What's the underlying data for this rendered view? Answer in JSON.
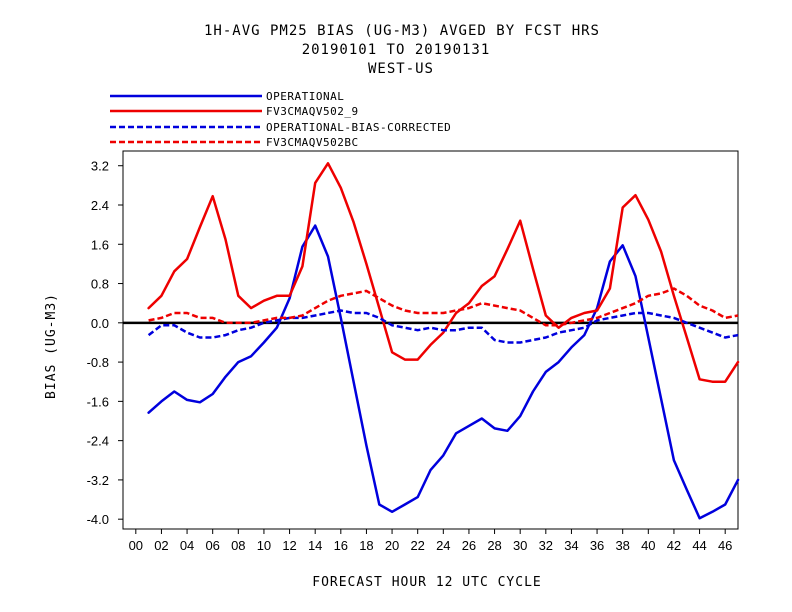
{
  "chart_data": {
    "type": "line",
    "title_lines": [
      "1H-AVG PM25 BIAS (UG-M3)  AVGED BY FCST HRS",
      "20190101 TO 20190131",
      "WEST-US"
    ],
    "xlabel": "FORECAST HOUR  12 UTC CYCLE",
    "ylabel": "BIAS (UG-M3)",
    "xlim": [
      -1,
      47
    ],
    "ylim": [
      -4.2,
      3.5
    ],
    "xticks": [
      0,
      2,
      4,
      6,
      8,
      10,
      12,
      14,
      16,
      18,
      20,
      22,
      24,
      26,
      28,
      30,
      32,
      34,
      36,
      38,
      40,
      42,
      44,
      46
    ],
    "xtick_labels": [
      "00",
      "02",
      "04",
      "06",
      "08",
      "10",
      "12",
      "14",
      "16",
      "18",
      "20",
      "22",
      "24",
      "26",
      "28",
      "30",
      "32",
      "34",
      "36",
      "38",
      "40",
      "42",
      "44",
      "46"
    ],
    "yticks": [
      3.2,
      2.4,
      1.6,
      0.8,
      0.0,
      -0.8,
      -1.6,
      -2.4,
      -3.2,
      -4.0
    ],
    "ytick_labels": [
      "3.2",
      "2.4",
      "1.6",
      "0.8",
      "0.0",
      "-0.8",
      "-1.6",
      "-2.4",
      "-3.2",
      "-4.0"
    ],
    "zero_line": true,
    "grid": false,
    "legend_position": "top-left, above plot",
    "x": [
      1,
      2,
      3,
      4,
      5,
      6,
      7,
      8,
      9,
      10,
      11,
      12,
      13,
      14,
      15,
      16,
      17,
      18,
      19,
      20,
      21,
      22,
      23,
      24,
      25,
      26,
      27,
      28,
      29,
      30,
      31,
      32,
      33,
      34,
      35,
      36,
      37,
      38,
      39,
      40,
      41,
      42,
      43,
      44,
      45,
      46,
      47
    ],
    "series": [
      {
        "name": "OPERATIONAL",
        "color": "#0000dd",
        "dash": "solid",
        "values": [
          -1.83,
          -1.6,
          -1.4,
          -1.57,
          -1.62,
          -1.45,
          -1.1,
          -0.8,
          -0.68,
          -0.4,
          -0.1,
          0.5,
          1.55,
          1.98,
          1.35,
          0.1,
          -1.2,
          -2.5,
          -3.7,
          -3.85,
          -3.7,
          -3.55,
          -3.0,
          -2.7,
          -2.25,
          -2.1,
          -1.95,
          -2.15,
          -2.2,
          -1.9,
          -1.4,
          -1.0,
          -0.8,
          -0.5,
          -0.25,
          0.3,
          1.25,
          1.58,
          0.95,
          -0.3,
          -1.55,
          -2.8,
          -3.4,
          -3.98,
          -3.85,
          -3.7,
          -3.2
        ]
      },
      {
        "name": "FV3CMAQV502_9",
        "color": "#ee0000",
        "dash": "solid",
        "values": [
          0.3,
          0.55,
          1.05,
          1.3,
          1.95,
          2.58,
          1.7,
          0.55,
          0.3,
          0.45,
          0.55,
          0.55,
          1.15,
          2.85,
          3.25,
          2.75,
          2.05,
          1.2,
          0.3,
          -0.6,
          -0.75,
          -0.75,
          -0.45,
          -0.2,
          0.2,
          0.4,
          0.75,
          0.95,
          1.5,
          2.08,
          1.1,
          0.15,
          -0.1,
          0.1,
          0.2,
          0.25,
          0.7,
          2.35,
          2.6,
          2.1,
          1.45,
          0.55,
          -0.3,
          -1.15,
          -1.2,
          -1.2,
          -0.8
        ]
      },
      {
        "name": "OPERATIONAL-BIAS-CORRECTED",
        "color": "#0000dd",
        "dash": "dashed",
        "values": [
          -0.25,
          -0.05,
          -0.05,
          -0.2,
          -0.3,
          -0.3,
          -0.25,
          -0.15,
          -0.1,
          0.0,
          0.05,
          0.1,
          0.1,
          0.15,
          0.2,
          0.25,
          0.2,
          0.2,
          0.1,
          -0.05,
          -0.1,
          -0.15,
          -0.1,
          -0.15,
          -0.15,
          -0.1,
          -0.1,
          -0.35,
          -0.4,
          -0.4,
          -0.35,
          -0.3,
          -0.2,
          -0.15,
          -0.1,
          0.05,
          0.1,
          0.15,
          0.2,
          0.2,
          0.15,
          0.1,
          0.0,
          -0.1,
          -0.2,
          -0.3,
          -0.25
        ]
      },
      {
        "name": "FV3CMAQV502BC",
        "color": "#ee0000",
        "dash": "dashed",
        "values": [
          0.05,
          0.1,
          0.2,
          0.2,
          0.1,
          0.1,
          0.0,
          0.0,
          0.0,
          0.05,
          0.1,
          0.1,
          0.15,
          0.3,
          0.45,
          0.55,
          0.6,
          0.65,
          0.5,
          0.35,
          0.25,
          0.2,
          0.2,
          0.2,
          0.25,
          0.3,
          0.4,
          0.35,
          0.3,
          0.25,
          0.1,
          -0.05,
          -0.05,
          0.0,
          0.05,
          0.1,
          0.2,
          0.3,
          0.4,
          0.55,
          0.6,
          0.7,
          0.55,
          0.35,
          0.25,
          0.1,
          0.15
        ]
      }
    ]
  }
}
